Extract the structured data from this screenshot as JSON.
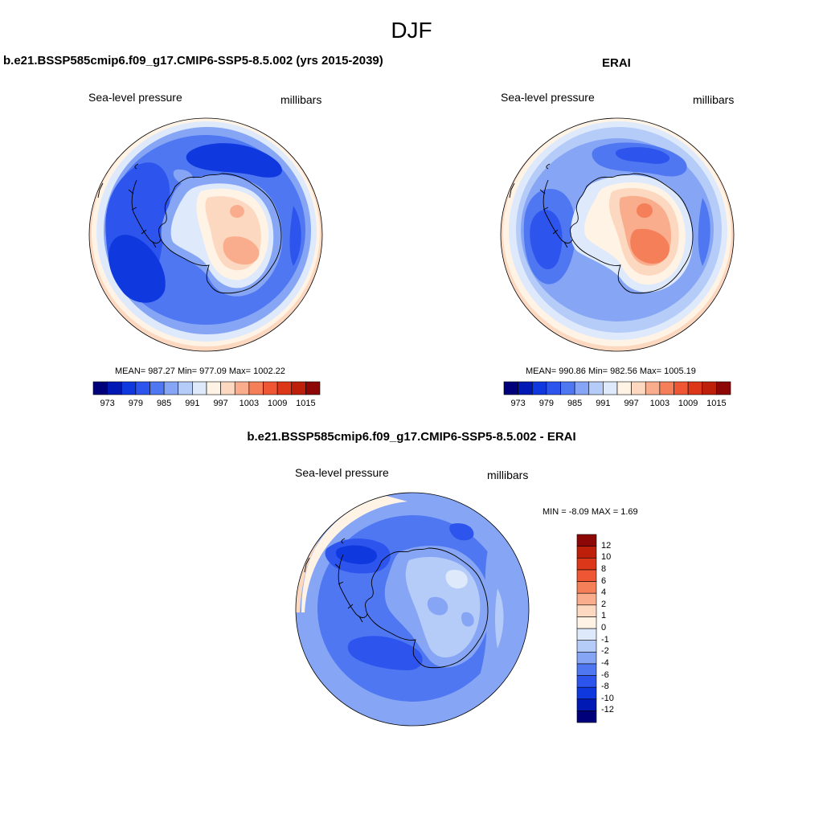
{
  "figure": {
    "season": "DJF"
  },
  "panels": [
    {
      "title": "b.e21.BSSP585cmip6.f09_g17.CMIP6-SSP5-8.5.002 (yrs 2015-2039)",
      "left_label": "Sea-level pressure",
      "right_label": "millibars",
      "stats": {
        "mean": "987.27",
        "min": "977.09",
        "max": "1002.22"
      },
      "stats_text": "MEAN= 987.27  Min= 977.09  Max= 1002.22"
    },
    {
      "title": "ERAI",
      "left_label": "Sea-level pressure",
      "right_label": "millibars",
      "stats": {
        "mean": "990.86",
        "min": "982.56",
        "max": "1005.19"
      },
      "stats_text": "MEAN= 990.86  Min= 982.56  Max= 1005.19"
    },
    {
      "title": "b.e21.BSSP585cmip6.f09_g17.CMIP6-SSP5-8.5.002 - ERAI",
      "left_label": "Sea-level pressure",
      "right_label": "millibars",
      "stats": {
        "min": "-8.09",
        "max": "1.69"
      },
      "stats_text": "MIN =  -8.09 MAX =   1.69"
    }
  ],
  "colorbars": {
    "absolute": {
      "colors": [
        "#00007a",
        "#0018b4",
        "#0f38df",
        "#2d55ee",
        "#5077f2",
        "#86a6f5",
        "#b6ccf8",
        "#deeafc",
        "#fff3e6",
        "#fdd8c0",
        "#f9ad8d",
        "#f57f59",
        "#ef5734",
        "#dc3718",
        "#bd1f0a",
        "#8c0705"
      ],
      "tick_labels": [
        "973",
        "979",
        "985",
        "991",
        "997",
        "1003",
        "1009",
        "1015"
      ]
    },
    "difference": {
      "colors": [
        "#00007a",
        "#0018b4",
        "#0f38df",
        "#2d55ee",
        "#5077f2",
        "#86a6f5",
        "#b6ccf8",
        "#deeafc",
        "#fff3e6",
        "#fdd8c0",
        "#f9ad8d",
        "#f57f59",
        "#ef5734",
        "#dc3718",
        "#bd1f0a",
        "#8c0705"
      ],
      "tick_labels": [
        "-12",
        "-10",
        "-8",
        "-6",
        "-4",
        "-2",
        "-1",
        "0",
        "1",
        "2",
        "4",
        "6",
        "8",
        "10",
        "12"
      ]
    }
  }
}
